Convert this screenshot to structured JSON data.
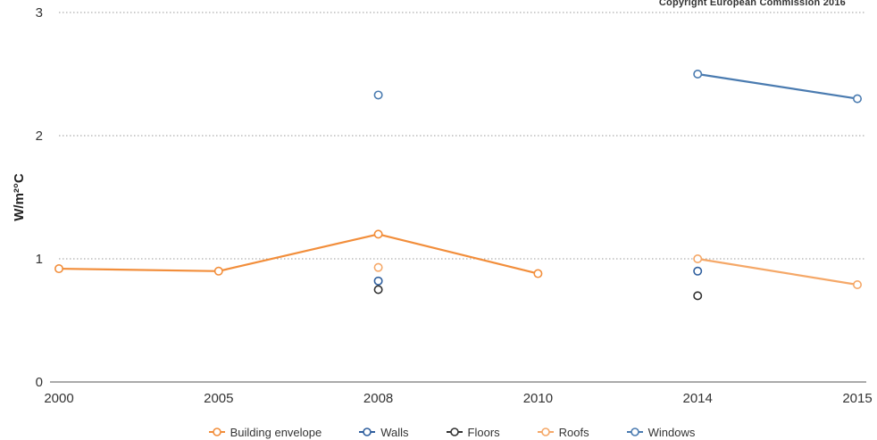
{
  "copyright": "Copyright European Commission 2016",
  "chart_data": {
    "type": "line",
    "ylabel": "W/m²°C",
    "categories": [
      "2000",
      "2005",
      "2008",
      "2010",
      "2014",
      "2015"
    ],
    "ylim": [
      0,
      3
    ],
    "yticks": [
      "0",
      "1",
      "2",
      "3"
    ],
    "grid": true,
    "legend_position": "bottom",
    "series": [
      {
        "name": "Building envelope",
        "color": "#f28e3b",
        "line": true,
        "values": [
          0.92,
          0.9,
          1.2,
          0.88,
          null,
          null
        ]
      },
      {
        "name": "Walls",
        "color": "#2f5f9e",
        "line": true,
        "values": [
          null,
          null,
          0.82,
          null,
          0.9,
          null
        ]
      },
      {
        "name": "Floors",
        "color": "#333333",
        "line": true,
        "values": [
          null,
          null,
          0.75,
          null,
          0.7,
          null
        ]
      },
      {
        "name": "Roofs",
        "color": "#f5a868",
        "line": true,
        "values": [
          null,
          null,
          0.93,
          null,
          1.0,
          0.79
        ]
      },
      {
        "name": "Windows",
        "color": "#4a7bb0",
        "line": true,
        "values": [
          null,
          null,
          2.33,
          null,
          2.5,
          2.3
        ]
      }
    ]
  }
}
